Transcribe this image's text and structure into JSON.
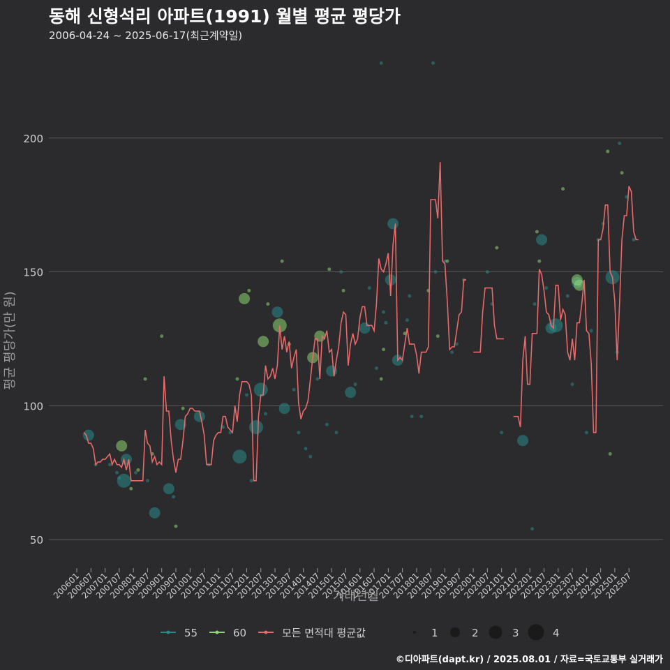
{
  "title": "동해 신형석리 아파트(1991) 월별 평균 평당가",
  "subtitle": "2006-04-24 ~ 2025-06-17(최근계약일)",
  "caption": "©디아파트(dapt.kr) / 2025.08.01 / 자료=국토교통부 실거래가",
  "colors": {
    "background": "#2b2a2c",
    "grid": "#5a5a5a",
    "s55": "#2a8a8a",
    "s60": "#8fd672",
    "avg": "#e86a6a",
    "text": "#cfcfcf"
  },
  "chart_data": {
    "type": "line",
    "xlabel": "거래년월",
    "ylabel": "평균 평당가(만 원)",
    "ylim": [
      43,
      232
    ],
    "yticks": [
      50,
      100,
      150,
      200
    ],
    "x_range": [
      "2006-01",
      "2025-09"
    ],
    "xticks": [
      "200601",
      "200607",
      "200701",
      "200707",
      "200801",
      "200807",
      "200901",
      "200907",
      "201001",
      "201007",
      "201101",
      "201107",
      "201201",
      "201207",
      "201301",
      "201307",
      "201401",
      "201407",
      "201501",
      "201507",
      "201601",
      "201607",
      "201701",
      "201707",
      "201801",
      "201807",
      "201901",
      "201907",
      "202001",
      "202007",
      "202101",
      "202107",
      "202201",
      "202207",
      "202301",
      "202307",
      "202401",
      "202407",
      "202501",
      "202507"
    ],
    "legend": {
      "series": [
        {
          "name": "55",
          "color": "#2a8a8a"
        },
        {
          "name": "60",
          "color": "#8fd672"
        },
        {
          "name": "모든 면적대 평균값",
          "color": "#e86a6a"
        }
      ],
      "sizes": [
        "1",
        "2",
        "3",
        "4"
      ]
    },
    "avg_line": [
      [
        "2006-04",
        90
      ],
      [
        "2006-05",
        89
      ],
      [
        "2006-06",
        86
      ],
      [
        "2006-07",
        86
      ],
      [
        "2006-08",
        84
      ],
      [
        "2006-09",
        78
      ],
      [
        "2006-10",
        79
      ],
      [
        "2006-11",
        79
      ],
      [
        "2006-12",
        80
      ],
      [
        "2007-01",
        80
      ],
      [
        "2007-02",
        81
      ],
      [
        "2007-03",
        82
      ],
      [
        "2007-04",
        78
      ],
      [
        "2007-05",
        80
      ],
      [
        "2007-06",
        78
      ],
      [
        "2007-07",
        78
      ],
      [
        "2007-08",
        77
      ],
      [
        "2007-09",
        80
      ],
      [
        "2007-10",
        76
      ],
      [
        "2007-11",
        80
      ],
      [
        "2007-12",
        72
      ],
      [
        "2008-01",
        72
      ],
      [
        "2008-02",
        72
      ],
      [
        "2008-03",
        72
      ],
      [
        "2008-04",
        72
      ],
      [
        "2008-05",
        72
      ],
      [
        "2008-06",
        91
      ],
      [
        "2008-07",
        86
      ],
      [
        "2008-08",
        85
      ],
      [
        "2008-09",
        79
      ],
      [
        "2008-10",
        81
      ],
      [
        "2008-11",
        78
      ],
      [
        "2008-12",
        79
      ],
      [
        "2009-01",
        78
      ],
      [
        "2009-02",
        111
      ],
      [
        "2009-03",
        98
      ],
      [
        "2009-04",
        98
      ],
      [
        "2009-05",
        87
      ],
      [
        "2009-06",
        80
      ],
      [
        "2009-07",
        75
      ],
      [
        "2009-08",
        80
      ],
      [
        "2009-09",
        80
      ],
      [
        "2009-10",
        87
      ],
      [
        "2009-11",
        96
      ],
      [
        "2009-12",
        97
      ],
      [
        "2010-01",
        99
      ],
      [
        "2010-02",
        99
      ],
      [
        "2010-03",
        98
      ],
      [
        "2010-04",
        98
      ],
      [
        "2010-05",
        98
      ],
      [
        "2010-06",
        94
      ],
      [
        "2010-07",
        89
      ],
      [
        "2010-08",
        78
      ],
      [
        "2010-09",
        78
      ],
      [
        "2010-10",
        78
      ],
      [
        "2010-11",
        87
      ],
      [
        "2010-12",
        89
      ],
      [
        "2011-01",
        90
      ],
      [
        "2011-02",
        90
      ],
      [
        "2011-03",
        96
      ],
      [
        "2011-04",
        96
      ],
      [
        "2011-05",
        92
      ],
      [
        "2011-06",
        91
      ],
      [
        "2011-07",
        90
      ],
      [
        "2011-08",
        100
      ],
      [
        "2011-09",
        94
      ],
      [
        "2011-10",
        104
      ],
      [
        "2011-11",
        109
      ],
      [
        "2011-12",
        109
      ],
      [
        "2012-01",
        109
      ],
      [
        "2012-02",
        108
      ],
      [
        "2012-03",
        104
      ],
      [
        "2012-04",
        72
      ],
      [
        "2012-05",
        72
      ],
      [
        "2012-06",
        96
      ],
      [
        "2012-07",
        104
      ],
      [
        "2012-08",
        104
      ],
      [
        "2012-09",
        115
      ],
      [
        "2012-10",
        110
      ],
      [
        "2012-11",
        111
      ],
      [
        "2012-12",
        114
      ],
      [
        "2013-01",
        110
      ],
      [
        "2013-02",
        115
      ],
      [
        "2013-03",
        130
      ],
      [
        "2013-04",
        121
      ],
      [
        "2013-05",
        126
      ],
      [
        "2013-06",
        120
      ],
      [
        "2013-07",
        124
      ],
      [
        "2013-08",
        114
      ],
      [
        "2013-09",
        118
      ],
      [
        "2013-10",
        121
      ],
      [
        "2013-11",
        101
      ],
      [
        "2013-12",
        95
      ],
      [
        "2014-01",
        98
      ],
      [
        "2014-02",
        99
      ],
      [
        "2014-03",
        102
      ],
      [
        "2014-04",
        110
      ],
      [
        "2014-05",
        118
      ],
      [
        "2014-06",
        125
      ],
      [
        "2014-07",
        125
      ],
      [
        "2014-08",
        110
      ],
      [
        "2014-09",
        126
      ],
      [
        "2014-10",
        125
      ],
      [
        "2014-11",
        128
      ],
      [
        "2014-12",
        120
      ],
      [
        "2015-01",
        121
      ],
      [
        "2015-02",
        111
      ],
      [
        "2015-03",
        117
      ],
      [
        "2015-04",
        122
      ],
      [
        "2015-05",
        131
      ],
      [
        "2015-06",
        135
      ],
      [
        "2015-07",
        134
      ],
      [
        "2015-08",
        115
      ],
      [
        "2015-09",
        123
      ],
      [
        "2015-10",
        127
      ],
      [
        "2015-11",
        123
      ],
      [
        "2015-12",
        125
      ],
      [
        "2016-01",
        133
      ],
      [
        "2016-02",
        137
      ],
      [
        "2016-03",
        137
      ],
      [
        "2016-04",
        130
      ],
      [
        "2016-05",
        130
      ],
      [
        "2016-06",
        130
      ],
      [
        "2016-07",
        128
      ],
      [
        "2016-08",
        138
      ],
      [
        "2016-09",
        155
      ],
      [
        "2016-10",
        151
      ],
      [
        "2016-11",
        150
      ],
      [
        "2016-12",
        153
      ],
      [
        "2017-01",
        157
      ],
      [
        "2017-02",
        141
      ],
      [
        "2017-03",
        160
      ],
      [
        "2017-04",
        168
      ],
      [
        "2017-05",
        117
      ],
      [
        "2017-06",
        118
      ],
      [
        "2017-07",
        117
      ],
      [
        "2017-08",
        123
      ],
      [
        "2017-09",
        129
      ],
      [
        "2017-10",
        123
      ],
      [
        "2017-11",
        123
      ],
      [
        "2017-12",
        123
      ],
      [
        "2018-01",
        119
      ],
      [
        "2018-02",
        112
      ],
      [
        "2018-03",
        120
      ],
      [
        "2018-04",
        120
      ],
      [
        "2018-05",
        120
      ],
      [
        "2018-06",
        122
      ],
      [
        "2018-07",
        177
      ],
      [
        "2018-08",
        177
      ],
      [
        "2018-09",
        177
      ],
      [
        "2018-10",
        170
      ],
      [
        "2018-11",
        191
      ],
      [
        "2018-12",
        154
      ],
      [
        "2019-01",
        153
      ],
      [
        "2019-02",
        139
      ],
      [
        "2019-03",
        121
      ],
      [
        "2019-04",
        122
      ],
      [
        "2019-05",
        122
      ],
      [
        "2019-06",
        128
      ],
      [
        "2019-07",
        134
      ],
      [
        "2019-08",
        135
      ],
      [
        "2019-09",
        147
      ],
      [
        "2019-10",
        147
      ],
      [
        "2020-01",
        120
      ],
      [
        "2020-02",
        120
      ],
      [
        "2020-03",
        120
      ],
      [
        "2020-04",
        120
      ],
      [
        "2020-05",
        135
      ],
      [
        "2020-06",
        144
      ],
      [
        "2020-07",
        144
      ],
      [
        "2020-08",
        144
      ],
      [
        "2020-09",
        144
      ],
      [
        "2020-10",
        130
      ],
      [
        "2020-11",
        125
      ],
      [
        "2020-12",
        125
      ],
      [
        "2021-01",
        125
      ],
      [
        "2021-02",
        125
      ],
      [
        "2021-06",
        96
      ],
      [
        "2021-07",
        96
      ],
      [
        "2021-08",
        96
      ],
      [
        "2021-09",
        92
      ],
      [
        "2021-10",
        117
      ],
      [
        "2021-11",
        126
      ],
      [
        "2021-12",
        108
      ],
      [
        "2022-01",
        108
      ],
      [
        "2022-02",
        127
      ],
      [
        "2022-03",
        127
      ],
      [
        "2022-04",
        127
      ],
      [
        "2022-05",
        151
      ],
      [
        "2022-06",
        149
      ],
      [
        "2022-07",
        143
      ],
      [
        "2022-08",
        135
      ],
      [
        "2022-09",
        134
      ],
      [
        "2022-10",
        130
      ],
      [
        "2022-11",
        129
      ],
      [
        "2022-12",
        145
      ],
      [
        "2023-01",
        145
      ],
      [
        "2023-02",
        132
      ],
      [
        "2023-03",
        136
      ],
      [
        "2023-04",
        134
      ],
      [
        "2023-05",
        120
      ],
      [
        "2023-06",
        117
      ],
      [
        "2023-07",
        125
      ],
      [
        "2023-08",
        117
      ],
      [
        "2023-09",
        131
      ],
      [
        "2023-10",
        131
      ],
      [
        "2023-11",
        138
      ],
      [
        "2023-12",
        147
      ],
      [
        "2024-01",
        128
      ],
      [
        "2024-02",
        127
      ],
      [
        "2024-03",
        116
      ],
      [
        "2024-04",
        90
      ],
      [
        "2024-05",
        90
      ],
      [
        "2024-06",
        162
      ],
      [
        "2024-07",
        162
      ],
      [
        "2024-08",
        166
      ],
      [
        "2024-09",
        175
      ],
      [
        "2024-10",
        175
      ],
      [
        "2024-11",
        150
      ],
      [
        "2024-12",
        148
      ],
      [
        "2025-01",
        139
      ],
      [
        "2025-02",
        117
      ],
      [
        "2025-03",
        138
      ],
      [
        "2025-04",
        162
      ],
      [
        "2025-05",
        171
      ],
      [
        "2025-06",
        171
      ],
      [
        "2025-07",
        182
      ],
      [
        "2025-08",
        180
      ],
      [
        "2025-09",
        165
      ],
      [
        "2025-10",
        162
      ],
      [
        "2025-11",
        162
      ]
    ],
    "points_55": [
      [
        "2006-06",
        89,
        2
      ],
      [
        "2006-09",
        78,
        1
      ],
      [
        "2007-03",
        78,
        1
      ],
      [
        "2007-06",
        75,
        1
      ],
      [
        "2007-07",
        73,
        1
      ],
      [
        "2007-09",
        72,
        3
      ],
      [
        "2007-10",
        80,
        2
      ],
      [
        "2008-02",
        75,
        1
      ],
      [
        "2008-07",
        72,
        1
      ],
      [
        "2008-10",
        60,
        2
      ],
      [
        "2009-04",
        69,
        2
      ],
      [
        "2009-06",
        66,
        1
      ],
      [
        "2009-09",
        93,
        2
      ],
      [
        "2010-05",
        96,
        2
      ],
      [
        "2010-09",
        78,
        1
      ],
      [
        "2011-03",
        92,
        1
      ],
      [
        "2011-06",
        90,
        1
      ],
      [
        "2011-10",
        81,
        3
      ],
      [
        "2012-01",
        104,
        1
      ],
      [
        "2012-03",
        72,
        1
      ],
      [
        "2012-05",
        92,
        3
      ],
      [
        "2012-07",
        106,
        3
      ],
      [
        "2012-09",
        97,
        1
      ],
      [
        "2013-02",
        135,
        2
      ],
      [
        "2013-05",
        99,
        2
      ],
      [
        "2013-09",
        106,
        1
      ],
      [
        "2013-11",
        90,
        1
      ],
      [
        "2014-02",
        84,
        1
      ],
      [
        "2014-04",
        81,
        1
      ],
      [
        "2014-07",
        110,
        1
      ],
      [
        "2014-11",
        93,
        1
      ],
      [
        "2015-01",
        113,
        2
      ],
      [
        "2015-03",
        90,
        1
      ],
      [
        "2015-05",
        150,
        1
      ],
      [
        "2015-09",
        105,
        2
      ],
      [
        "2015-11",
        108,
        1
      ],
      [
        "2016-03",
        129,
        2
      ],
      [
        "2016-05",
        144,
        1
      ],
      [
        "2016-08",
        114,
        1
      ],
      [
        "2016-11",
        135,
        1
      ],
      [
        "2016-12",
        131,
        1
      ],
      [
        "2017-02",
        147,
        2
      ],
      [
        "2017-03",
        168,
        2
      ],
      [
        "2017-05",
        117,
        2
      ],
      [
        "2017-09",
        132,
        1
      ],
      [
        "2017-10",
        141,
        1
      ],
      [
        "2017-11",
        96,
        1
      ],
      [
        "2018-03",
        96,
        1
      ],
      [
        "2018-08",
        228,
        1
      ],
      [
        "2018-09",
        150,
        1
      ],
      [
        "2019-01",
        154,
        1
      ],
      [
        "2019-04",
        120,
        1
      ],
      [
        "2019-06",
        123,
        1
      ],
      [
        "2019-09",
        147,
        1
      ],
      [
        "2020-07",
        150,
        1
      ],
      [
        "2020-09",
        138,
        1
      ],
      [
        "2021-01",
        90,
        1
      ],
      [
        "2021-10",
        87,
        2
      ],
      [
        "2022-02",
        54,
        1
      ],
      [
        "2022-06",
        162,
        2
      ],
      [
        "2022-08",
        144,
        1
      ],
      [
        "2022-10",
        129,
        2
      ],
      [
        "2022-12",
        130,
        3
      ],
      [
        "2023-05",
        141,
        1
      ],
      [
        "2023-09",
        146,
        2
      ],
      [
        "2023-10",
        145,
        1
      ],
      [
        "2024-01",
        90,
        1
      ],
      [
        "2024-03",
        128,
        1
      ],
      [
        "2024-06",
        162,
        1
      ],
      [
        "2024-08",
        168,
        1
      ],
      [
        "2024-12",
        148,
        3
      ],
      [
        "2025-02",
        120,
        1
      ],
      [
        "2025-03",
        198,
        1
      ],
      [
        "2025-06",
        178,
        1
      ],
      [
        "2025-09",
        162,
        1
      ],
      [
        "2016-10",
        228,
        1
      ],
      [
        "2022-03",
        138,
        1
      ],
      [
        "2023-07",
        108,
        1
      ]
    ],
    "points_60": [
      [
        "2007-08",
        85,
        2
      ],
      [
        "2007-12",
        69,
        1
      ],
      [
        "2008-06",
        110,
        1
      ],
      [
        "2008-09",
        82,
        1
      ],
      [
        "2008-03",
        76,
        1
      ],
      [
        "2009-01",
        126,
        1
      ],
      [
        "2009-07",
        55,
        1
      ],
      [
        "2009-10",
        99,
        1
      ],
      [
        "2011-09",
        110,
        1
      ],
      [
        "2011-12",
        140,
        2
      ],
      [
        "2012-02",
        143,
        1
      ],
      [
        "2012-08",
        124,
        2
      ],
      [
        "2012-10",
        138,
        1
      ],
      [
        "2013-03",
        130,
        3
      ],
      [
        "2013-04",
        154,
        1
      ],
      [
        "2013-07",
        123,
        1
      ],
      [
        "2014-05",
        118,
        2
      ],
      [
        "2014-08",
        126,
        2
      ],
      [
        "2014-12",
        151,
        1
      ],
      [
        "2015-06",
        143,
        1
      ],
      [
        "2016-10",
        110,
        1
      ],
      [
        "2016-11",
        121,
        1
      ],
      [
        "2017-08",
        127,
        1
      ],
      [
        "2018-06",
        143,
        1
      ],
      [
        "2018-10",
        126,
        1
      ],
      [
        "2019-02",
        154,
        1
      ],
      [
        "2020-11",
        159,
        1
      ],
      [
        "2022-04",
        165,
        1
      ],
      [
        "2022-05",
        154,
        1
      ],
      [
        "2023-03",
        181,
        1
      ],
      [
        "2023-09",
        147,
        2
      ],
      [
        "2024-10",
        195,
        1
      ],
      [
        "2024-11",
        82,
        1
      ],
      [
        "2025-04",
        187,
        1
      ],
      [
        "2023-10",
        145,
        2
      ]
    ]
  }
}
